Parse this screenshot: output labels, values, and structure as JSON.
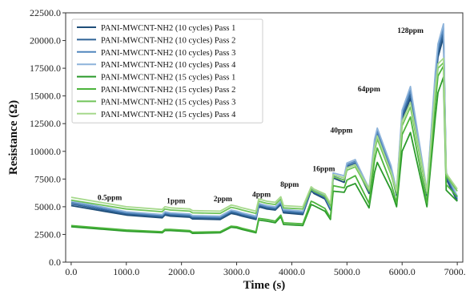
{
  "chart_data": {
    "type": "line",
    "title": "",
    "xlabel": "Time (s)",
    "ylabel": "Resistance (Ω)",
    "xlim": [
      -100,
      7100
    ],
    "ylim": [
      0,
      22500
    ],
    "x_ticks": [
      0,
      1000,
      2000,
      3000,
      4000,
      5000,
      6000,
      7000
    ],
    "x_tick_labels": [
      "0.0",
      "1000.0",
      "2000.0",
      "3000.0",
      "4000.0",
      "5000.0",
      "6000.0",
      "7000.0"
    ],
    "y_ticks": [
      0,
      2500,
      5000,
      7500,
      10000,
      12500,
      15000,
      17500,
      20000,
      22500
    ],
    "y_tick_labels": [
      "0.0",
      "2500.0",
      "5000.0",
      "7500.0",
      "10000.0",
      "12500.0",
      "15000.0",
      "17500.0",
      "20000.0",
      "22500.0"
    ],
    "grid": false,
    "legend_position": "top-left",
    "annotations": [
      {
        "text": "0.5ppm",
        "x": 700,
        "y": 5600
      },
      {
        "text": "1ppm",
        "x": 1900,
        "y": 5300
      },
      {
        "text": "2ppm",
        "x": 2750,
        "y": 5500
      },
      {
        "text": "4ppm",
        "x": 3450,
        "y": 5900
      },
      {
        "text": "8ppm",
        "x": 3960,
        "y": 6800
      },
      {
        "text": "16ppm",
        "x": 4580,
        "y": 8200
      },
      {
        "text": "40ppm",
        "x": 4900,
        "y": 11700
      },
      {
        "text": "64ppm",
        "x": 5400,
        "y": 15400
      },
      {
        "text": "128ppm",
        "x": 6150,
        "y": 20700
      }
    ],
    "x": [
      0,
      1000,
      1650,
      1700,
      1800,
      2150,
      2200,
      2700,
      2900,
      3000,
      3100,
      3350,
      3400,
      3550,
      3700,
      3800,
      3850,
      4200,
      4350,
      4400,
      4600,
      4700,
      4750,
      4950,
      5000,
      5150,
      5400,
      5500,
      5550,
      5800,
      5900,
      6000,
      6150,
      6450,
      6600,
      6650,
      6750,
      6800,
      7000
    ],
    "series": [
      {
        "name": "PANI-MWCNT-NH2 (10 cycles) Pass 1",
        "color": "#1f4e79",
        "values": [
          5100,
          4250,
          4000,
          4250,
          4150,
          4050,
          3900,
          3850,
          4400,
          4300,
          4150,
          3850,
          5000,
          4800,
          4700,
          5200,
          4450,
          4300,
          6450,
          6200,
          5700,
          4700,
          7600,
          7200,
          8500,
          8800,
          6200,
          10200,
          11200,
          8100,
          6000,
          12800,
          14800,
          6000,
          15900,
          18500,
          20300,
          7500,
          5500
        ]
      },
      {
        "name": "PANI-MWCNT-NH2 (10 cycles) Pass 2",
        "color": "#2f6396",
        "values": [
          5250,
          4350,
          4100,
          4350,
          4250,
          4150,
          4000,
          3950,
          4500,
          4400,
          4250,
          3950,
          5100,
          4900,
          4800,
          5300,
          4550,
          4400,
          6550,
          6300,
          5800,
          4800,
          7750,
          7400,
          8650,
          8950,
          6350,
          10500,
          11500,
          8300,
          6150,
          13100,
          15150,
          6150,
          16300,
          18900,
          20700,
          7700,
          5650
        ]
      },
      {
        "name": "PANI-MWCNT-NH2 (10 cycles) Pass 3",
        "color": "#5186bd",
        "values": [
          5400,
          4450,
          4200,
          4450,
          4350,
          4250,
          4100,
          4050,
          4600,
          4500,
          4350,
          4050,
          5200,
          5000,
          4900,
          5400,
          4650,
          4500,
          6650,
          6400,
          5900,
          4900,
          7900,
          7600,
          8800,
          9100,
          6500,
          10800,
          11800,
          8500,
          6300,
          13400,
          15500,
          6300,
          16700,
          19300,
          21100,
          7900,
          5800
        ]
      },
      {
        "name": "PANI-MWCNT-NH2 (10 cycles) Pass 4",
        "color": "#8db3da",
        "values": [
          5550,
          4550,
          4300,
          4550,
          4450,
          4350,
          4200,
          4150,
          4700,
          4600,
          4450,
          4150,
          5300,
          5100,
          5000,
          5500,
          4750,
          4600,
          6750,
          6500,
          6000,
          5000,
          8050,
          7800,
          8950,
          9250,
          6650,
          11100,
          12100,
          8700,
          6450,
          13700,
          15850,
          6450,
          17100,
          19700,
          21500,
          8100,
          5950
        ]
      },
      {
        "name": "PANI-MWCNT-NH2 (15 cycles) Pass 1",
        "color": "#2a9a2a",
        "values": [
          3200,
          2800,
          2650,
          2850,
          2850,
          2750,
          2600,
          2650,
          3150,
          3100,
          2950,
          2650,
          3800,
          3700,
          3550,
          4100,
          3400,
          3300,
          5200,
          5100,
          4600,
          3850,
          6400,
          6300,
          6800,
          7100,
          4900,
          8100,
          9000,
          6500,
          5000,
          10000,
          11700,
          5000,
          13000,
          15300,
          16700,
          6500,
          5500
        ]
      },
      {
        "name": "PANI-MWCNT-NH2 (15 cycles) Pass 2",
        "color": "#4cb43c",
        "values": [
          3300,
          2900,
          2750,
          2950,
          2950,
          2850,
          2700,
          2750,
          3250,
          3200,
          3050,
          2750,
          3950,
          3850,
          3700,
          4250,
          3550,
          3450,
          5500,
          5400,
          4850,
          4000,
          6900,
          6700,
          7400,
          7800,
          5300,
          9200,
          10300,
          7100,
          5350,
          11500,
          13100,
          5350,
          14300,
          16800,
          17700,
          7000,
          5900
        ]
      },
      {
        "name": "PANI-MWCNT-NH2 (15 cycles) Pass 3",
        "color": "#70c45a",
        "values": [
          5600,
          4800,
          4550,
          4800,
          4700,
          4600,
          4450,
          4400,
          4950,
          4850,
          4700,
          4400,
          5500,
          5300,
          5200,
          5700,
          4900,
          4800,
          6600,
          6400,
          5950,
          5100,
          7700,
          7400,
          8300,
          8600,
          6400,
          10000,
          11100,
          7900,
          6200,
          12300,
          14000,
          6200,
          15200,
          17500,
          18000,
          7800,
          6400
        ]
      },
      {
        "name": "PANI-MWCNT-NH2 (15 cycles) Pass 4",
        "color": "#a6d98c",
        "values": [
          5850,
          5000,
          4750,
          5000,
          4900,
          4800,
          4650,
          4600,
          5150,
          5050,
          4900,
          4600,
          5700,
          5500,
          5400,
          5900,
          5100,
          5000,
          6800,
          6600,
          6150,
          5300,
          7900,
          7600,
          8500,
          8800,
          6600,
          10300,
          11400,
          8100,
          6400,
          12700,
          14400,
          6400,
          15600,
          17900,
          18400,
          8000,
          6600
        ]
      }
    ]
  }
}
